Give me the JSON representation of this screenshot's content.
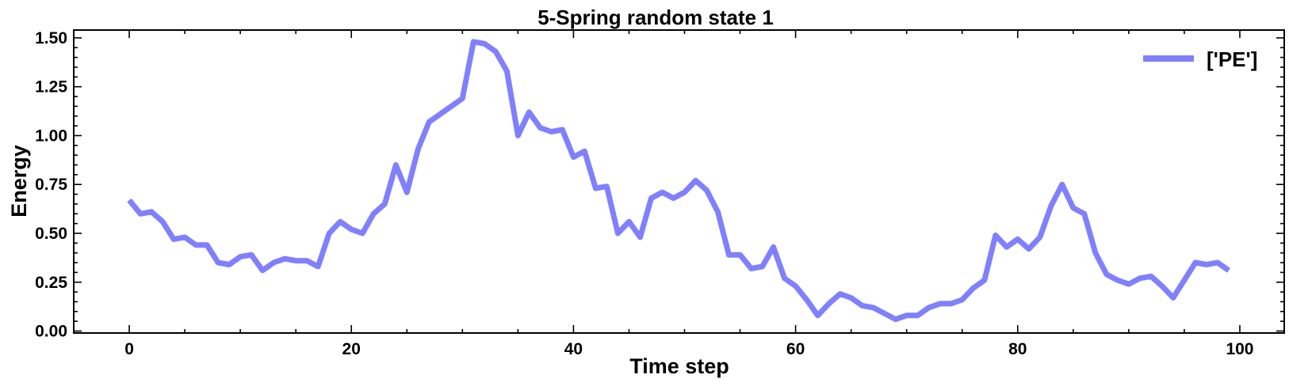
{
  "chart_data": {
    "type": "line",
    "title": "5-Spring random state 1",
    "xlabel": "Time step",
    "ylabel": "Energy",
    "xlim": [
      -5,
      104
    ],
    "ylim": [
      -0.01,
      1.54
    ],
    "xticks": [
      0,
      20,
      40,
      60,
      80,
      100
    ],
    "xtick_labels": [
      "0",
      "20",
      "40",
      "60",
      "80",
      "100"
    ],
    "yticks": [
      0.0,
      0.25,
      0.5,
      0.75,
      1.0,
      1.25,
      1.5
    ],
    "ytick_labels": [
      "0.00",
      "0.25",
      "0.50",
      "0.75",
      "1.00",
      "1.25",
      "1.50"
    ],
    "grid": false,
    "legend_position": "top-right",
    "series": [
      {
        "name": "['PE']",
        "color": "#8080ff",
        "x": [
          0,
          1,
          2,
          3,
          4,
          5,
          6,
          7,
          8,
          9,
          10,
          11,
          12,
          13,
          14,
          15,
          16,
          17,
          18,
          19,
          20,
          21,
          22,
          23,
          24,
          25,
          26,
          27,
          28,
          29,
          30,
          31,
          32,
          33,
          34,
          35,
          36,
          37,
          38,
          39,
          40,
          41,
          42,
          43,
          44,
          45,
          46,
          47,
          48,
          49,
          50,
          51,
          52,
          53,
          54,
          55,
          56,
          57,
          58,
          59,
          60,
          61,
          62,
          63,
          64,
          65,
          66,
          67,
          68,
          69,
          70,
          71,
          72,
          73,
          74,
          75,
          76,
          77,
          78,
          79,
          80,
          81,
          82,
          83,
          84,
          85,
          86,
          87,
          88,
          89,
          90,
          91,
          92,
          93,
          94,
          95,
          96,
          97,
          98,
          99
        ],
        "values": [
          0.67,
          0.6,
          0.61,
          0.56,
          0.47,
          0.48,
          0.44,
          0.44,
          0.35,
          0.34,
          0.38,
          0.39,
          0.31,
          0.35,
          0.37,
          0.36,
          0.36,
          0.33,
          0.5,
          0.56,
          0.52,
          0.5,
          0.6,
          0.65,
          0.85,
          0.71,
          0.93,
          1.07,
          1.11,
          1.15,
          1.19,
          1.48,
          1.47,
          1.43,
          1.33,
          1.0,
          1.12,
          1.04,
          1.02,
          1.03,
          0.89,
          0.92,
          0.73,
          0.74,
          0.5,
          0.56,
          0.48,
          0.68,
          0.71,
          0.68,
          0.71,
          0.77,
          0.72,
          0.61,
          0.39,
          0.39,
          0.32,
          0.33,
          0.43,
          0.27,
          0.23,
          0.16,
          0.08,
          0.14,
          0.19,
          0.17,
          0.13,
          0.12,
          0.09,
          0.06,
          0.08,
          0.08,
          0.12,
          0.14,
          0.14,
          0.16,
          0.22,
          0.26,
          0.49,
          0.43,
          0.47,
          0.42,
          0.48,
          0.64,
          0.75,
          0.63,
          0.6,
          0.4,
          0.29,
          0.26,
          0.24,
          0.27,
          0.28,
          0.23,
          0.17,
          0.26,
          0.35,
          0.34,
          0.35,
          0.31
        ]
      }
    ]
  }
}
